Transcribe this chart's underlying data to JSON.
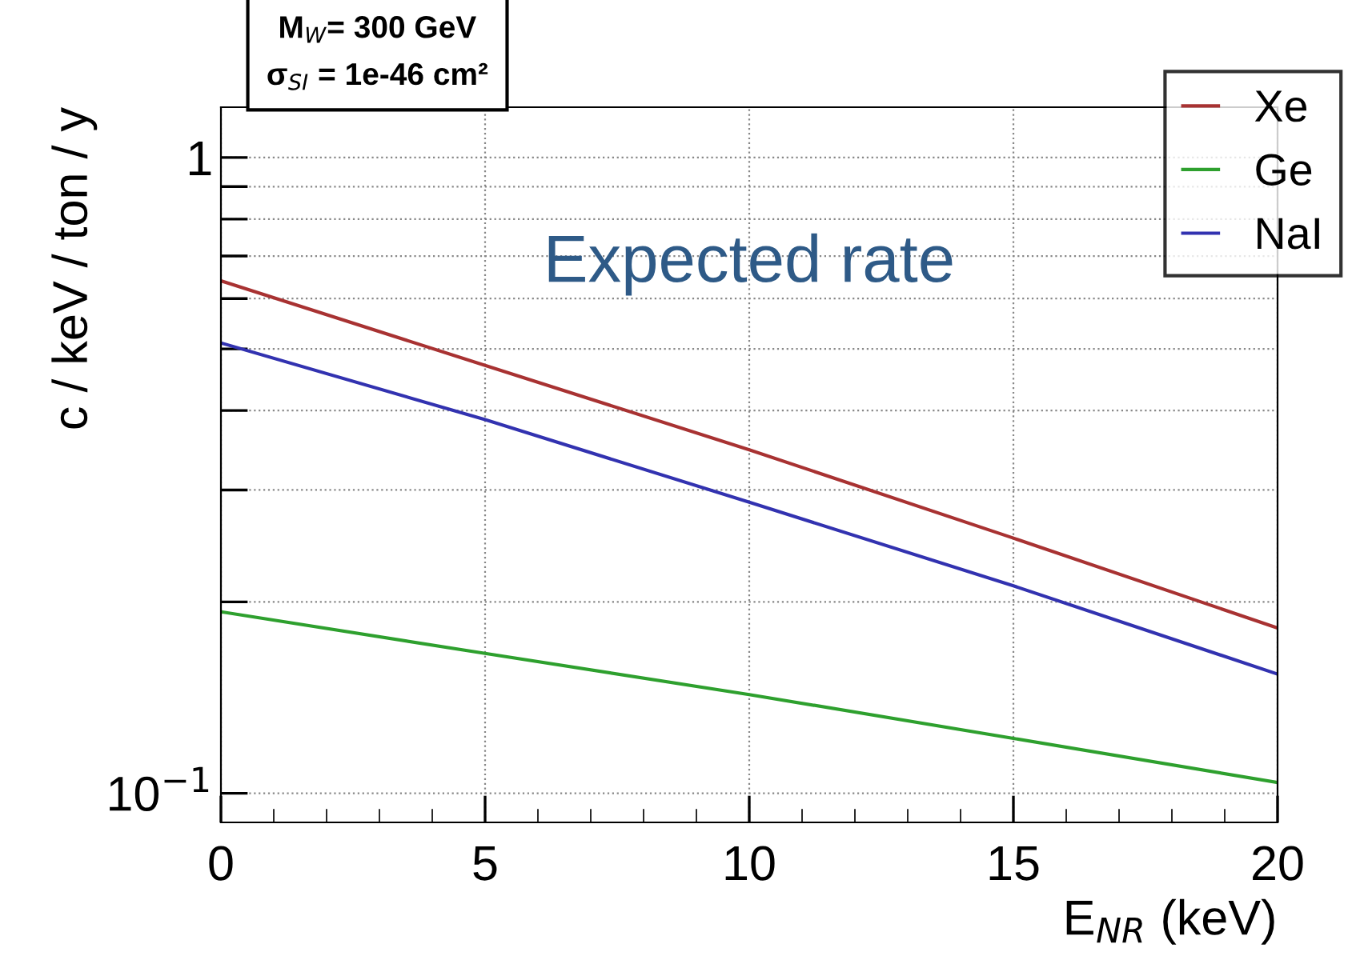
{
  "chart_data": {
    "type": "line",
    "xlabel": "E$_{NR}$ (keV)",
    "ylabel": "c / keV / ton / y",
    "annotations": [
      "M$_{W}$= 300 GeV",
      "σ$_{SI}$ = 1e-46 cm²",
      "Expected rate"
    ],
    "x": [
      0,
      5,
      10,
      15,
      20
    ],
    "series": [
      {
        "name": "Xe",
        "color": "#a83232",
        "values": [
          0.64,
          0.471,
          0.347,
          0.252,
          0.182
        ]
      },
      {
        "name": "Ge",
        "color": "#2ea02e",
        "values": [
          0.193,
          0.166,
          0.143,
          0.122,
          0.104
        ]
      },
      {
        "name": "NaI",
        "color": "#3232b0",
        "values": [
          0.511,
          0.387,
          0.287,
          0.212,
          0.154
        ]
      }
    ],
    "log": "y",
    "xlim": [
      0,
      20
    ],
    "ylim": [
      0.09,
      1.2
    ],
    "xticks": [
      0,
      5,
      10,
      15,
      20
    ],
    "yticks": [
      {
        "value": 0.1,
        "label": "10$^{−1}$"
      },
      {
        "value": 0.2,
        "label": null
      },
      {
        "value": 0.3,
        "label": null
      },
      {
        "value": 0.4,
        "label": null
      },
      {
        "value": 0.5,
        "label": null
      },
      {
        "value": 0.6,
        "label": null
      },
      {
        "value": 0.7,
        "label": null
      },
      {
        "value": 0.8,
        "label": null
      },
      {
        "value": 0.9,
        "label": null
      },
      1
    ],
    "grid": true,
    "legend": "top right",
    "marker": "none",
    "line_style": "solid"
  }
}
